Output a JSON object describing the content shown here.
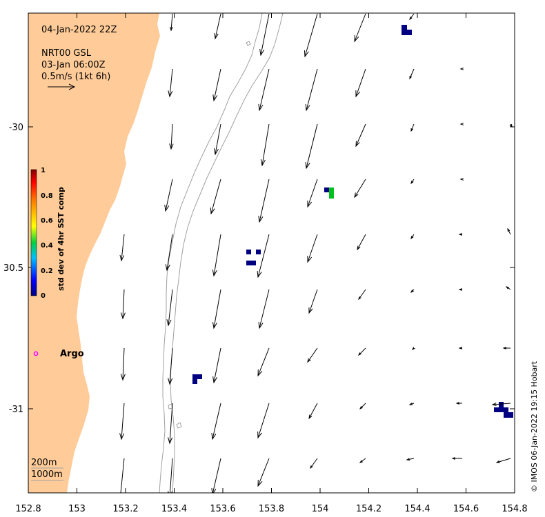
{
  "header": {
    "date": "04-Jan-2022 22Z",
    "product": "NRT00 GSL",
    "product_time": "03-Jan 06:00Z",
    "scale_label": "0.5m/s (1kt 6h)"
  },
  "axes": {
    "x_ticks": [
      "152.8",
      "153",
      "153.2",
      "153.4",
      "153.6",
      "153.8",
      "154",
      "154.2",
      "154.4",
      "154.6",
      "154.8"
    ],
    "y_ticks": [
      "-30",
      "30.5",
      "-31"
    ]
  },
  "colorbar": {
    "title": "std dev of 4hr SST comp",
    "ticks": [
      "0",
      "0.2",
      "0.4",
      "0.6",
      "0.8",
      "1"
    ],
    "colors": [
      "#000080",
      "#0000ff",
      "#00c0ff",
      "#00c000",
      "#ffff00",
      "#ff8000",
      "#ff0000",
      "#800000"
    ]
  },
  "legend": {
    "argo_label": "Argo",
    "argo_color": "#ff00ff",
    "contour_200": "200m",
    "contour_1000": "1000m"
  },
  "credit": "© IMOS 06-Jan-2022 19:15 Hobart",
  "colors": {
    "land": "#ffcc99",
    "contour": "#a0a0a0",
    "arrow": "#000000"
  }
}
